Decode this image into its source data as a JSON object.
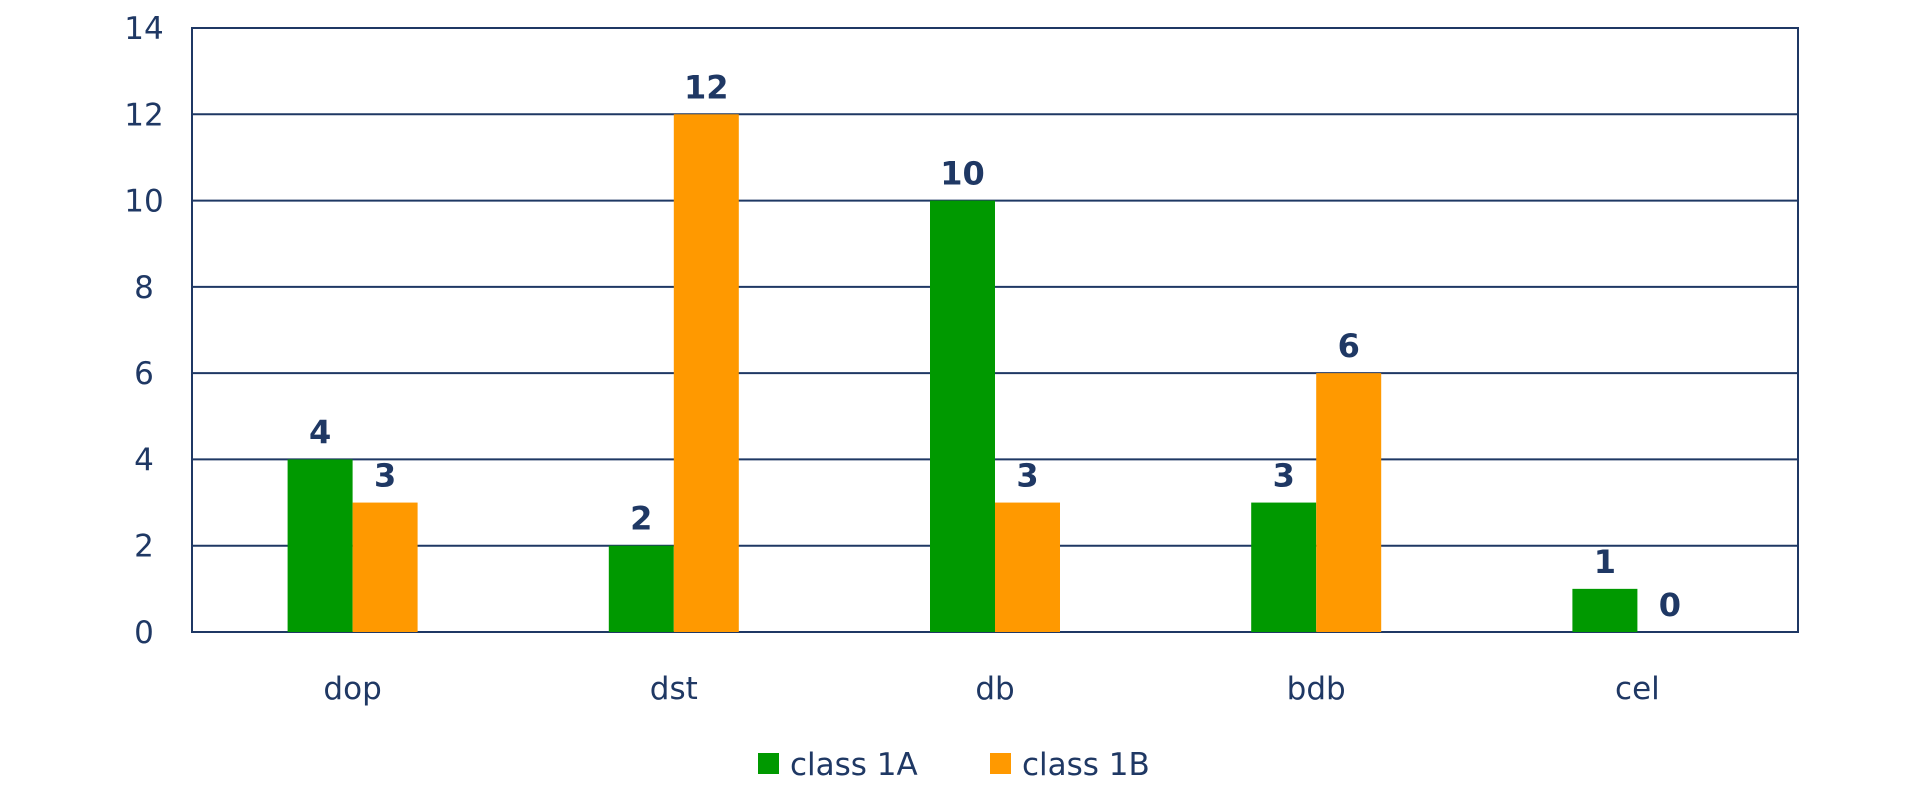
{
  "chart_data": {
    "type": "bar",
    "title": "",
    "xlabel": "",
    "ylabel": "",
    "categories": [
      "dop",
      "dst",
      "db",
      "bdb",
      "cel"
    ],
    "series": [
      {
        "name": "class 1A",
        "values": [
          4,
          2,
          10,
          3,
          1
        ],
        "color": "#009900"
      },
      {
        "name": "class 1B",
        "values": [
          3,
          12,
          3,
          6,
          0
        ],
        "color": "#FF9900"
      }
    ],
    "ylim": [
      0,
      14
    ],
    "yticks": [
      0,
      2,
      4,
      6,
      8,
      10,
      12,
      14
    ],
    "grid": true,
    "data_labels": true,
    "legend_position": "bottom",
    "text_color": "#1F3864"
  }
}
